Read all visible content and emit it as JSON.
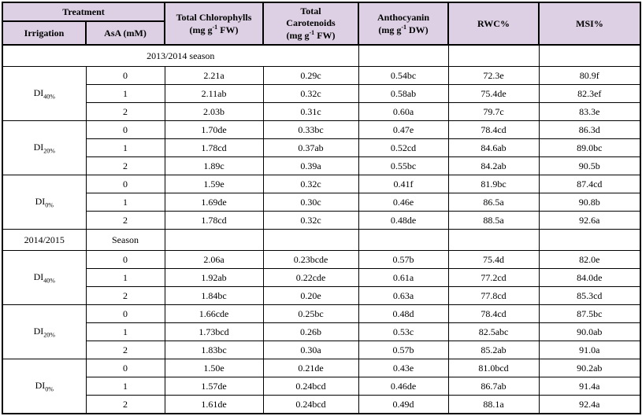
{
  "colors": {
    "header_bg": "#ddd0e4",
    "border": "#000000",
    "text": "#000000"
  },
  "header": {
    "treatment": "Treatment",
    "irrigation": "Irrigation",
    "asa": "AsA (mM)",
    "chlorophylls": {
      "title": "Total Chlorophylls",
      "unit_pre": "(mg g",
      "unit_sup": "-1",
      "unit_post": " FW)"
    },
    "carotenoids": {
      "title_line1": "Total",
      "title_line2": "Carotenoids",
      "unit_pre": "(mg g",
      "unit_sup": "-1",
      "unit_post": " FW)"
    },
    "anthocyanin": {
      "title": "Anthocyanin",
      "unit_pre": "(mg g",
      "unit_sup": "-1",
      "unit_post": " DW)"
    },
    "rwc": "RWC%",
    "msi": "MSI%"
  },
  "body": {
    "season1": {
      "label": "2013/2014 season",
      "blocks": [
        {
          "irrigation_base": "DI",
          "irrigation_sub": "40%",
          "rows": [
            [
              "0",
              "2.21a",
              "0.29c",
              "0.54bc",
              "72.3e",
              "80.9f"
            ],
            [
              "1",
              "2.11ab",
              "0.32c",
              "0.58ab",
              "75.4de",
              "82.3ef"
            ],
            [
              "2",
              "2.03b",
              "0.31c",
              "0.60a",
              "79.7c",
              "83.3e"
            ]
          ]
        },
        {
          "irrigation_base": "DI",
          "irrigation_sub": "20%",
          "rows": [
            [
              "0",
              "1.70de",
              "0.33bc",
              "0.47e",
              "78.4cd",
              "86.3d"
            ],
            [
              "1",
              "1.78cd",
              "0.37ab",
              "0.52cd",
              "84.6ab",
              "89.0bc"
            ],
            [
              "2",
              "1.89c",
              "0.39a",
              "0.55bc",
              "84.2ab",
              "90.5b"
            ]
          ]
        },
        {
          "irrigation_base": "DI",
          "irrigation_sub": "0%",
          "rows": [
            [
              "0",
              "1.59e",
              "0.32c",
              "0.41f",
              "81.9bc",
              "87.4cd"
            ],
            [
              "1",
              "1.69de",
              "0.30c",
              "0.46e",
              "86.5a",
              "90.8b"
            ],
            [
              "2",
              "1.78cd",
              "0.32c",
              "0.48de",
              "88.5a",
              "92.6a"
            ]
          ]
        }
      ]
    },
    "season2": {
      "label_col1": "2014/2015",
      "label_col2": "Season",
      "blocks": [
        {
          "irrigation_base": "DI",
          "irrigation_sub": "40%",
          "rows": [
            [
              "0",
              "2.06a",
              "0.23bcde",
              "0.57b",
              "75.4d",
              "82.0e"
            ],
            [
              "1",
              "1.92ab",
              "0.22cde",
              "0.61a",
              "77.2cd",
              "84.0de"
            ],
            [
              "2",
              "1.84bc",
              "0.20e",
              "0.63a",
              "77.8cd",
              "85.3cd"
            ]
          ]
        },
        {
          "irrigation_base": "DI",
          "irrigation_sub": "20%",
          "rows": [
            [
              "0",
              "1.66cde",
              "0.25bc",
              "0.48d",
              "78.4cd",
              "87.5bc"
            ],
            [
              "1",
              "1.73bcd",
              "0.26b",
              "0.53c",
              "82.5abc",
              "90.0ab"
            ],
            [
              "2",
              "1.83bc",
              "0.30a",
              "0.57b",
              "85.2ab",
              "91.0a"
            ]
          ]
        },
        {
          "irrigation_base": "DI",
          "irrigation_sub": "0%",
          "rows": [
            [
              "0",
              "1.50e",
              "0.21de",
              "0.43e",
              "81.0bcd",
              "90.2ab"
            ],
            [
              "1",
              "1.57de",
              "0.24bcd",
              "0.46de",
              "86.7ab",
              "91.4a"
            ],
            [
              "2",
              "1.61de",
              "0.24bcd",
              "0.49d",
              "88.1a",
              "92.4a"
            ]
          ]
        }
      ]
    }
  }
}
